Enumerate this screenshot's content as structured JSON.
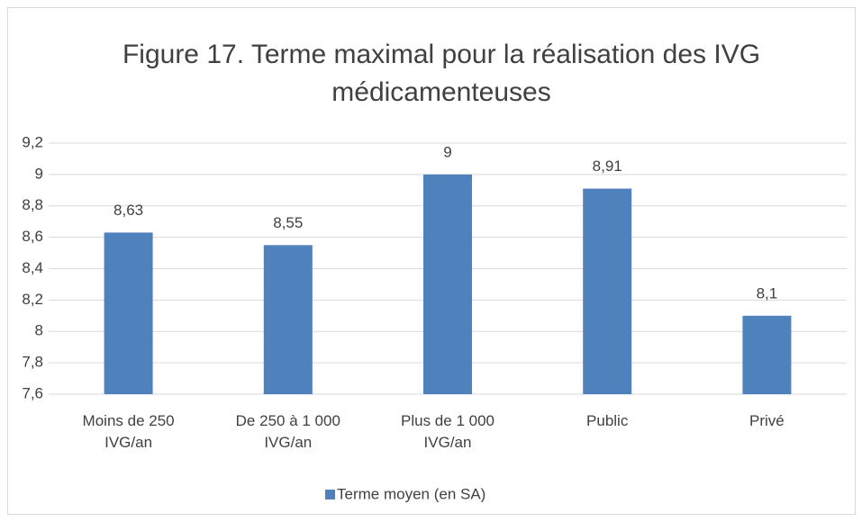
{
  "chart_data": {
    "type": "bar",
    "title": "Figure 17. Terme maximal pour la réalisation des IVG médicamenteuses",
    "categories": [
      "Moins de 250 IVG/an",
      "De 250 à 1 000 IVG/an",
      "Plus de 1 000 IVG/an",
      "Public",
      "Privé"
    ],
    "series": [
      {
        "name": "Terme moyen (en SA)",
        "color": "#4f81bd",
        "values": [
          8.63,
          8.55,
          9,
          8.91,
          8.1
        ],
        "value_labels": [
          "8,63",
          "8,55",
          "9",
          "8,91",
          "8,1"
        ]
      }
    ],
    "ylim": [
      7.6,
      9.2
    ],
    "yticks": [
      {
        "value": 7.6,
        "label": "7,6"
      },
      {
        "value": 7.8,
        "label": "7,8"
      },
      8,
      {
        "value": 8.2,
        "label": "8,2"
      },
      {
        "value": 8.4,
        "label": "8,4"
      },
      {
        "value": 8.6,
        "label": "8,6"
      },
      {
        "value": 8.8,
        "label": "8,8"
      },
      9,
      {
        "value": 9.2,
        "label": "9,2"
      }
    ],
    "grid": true,
    "legend": "bottom"
  }
}
